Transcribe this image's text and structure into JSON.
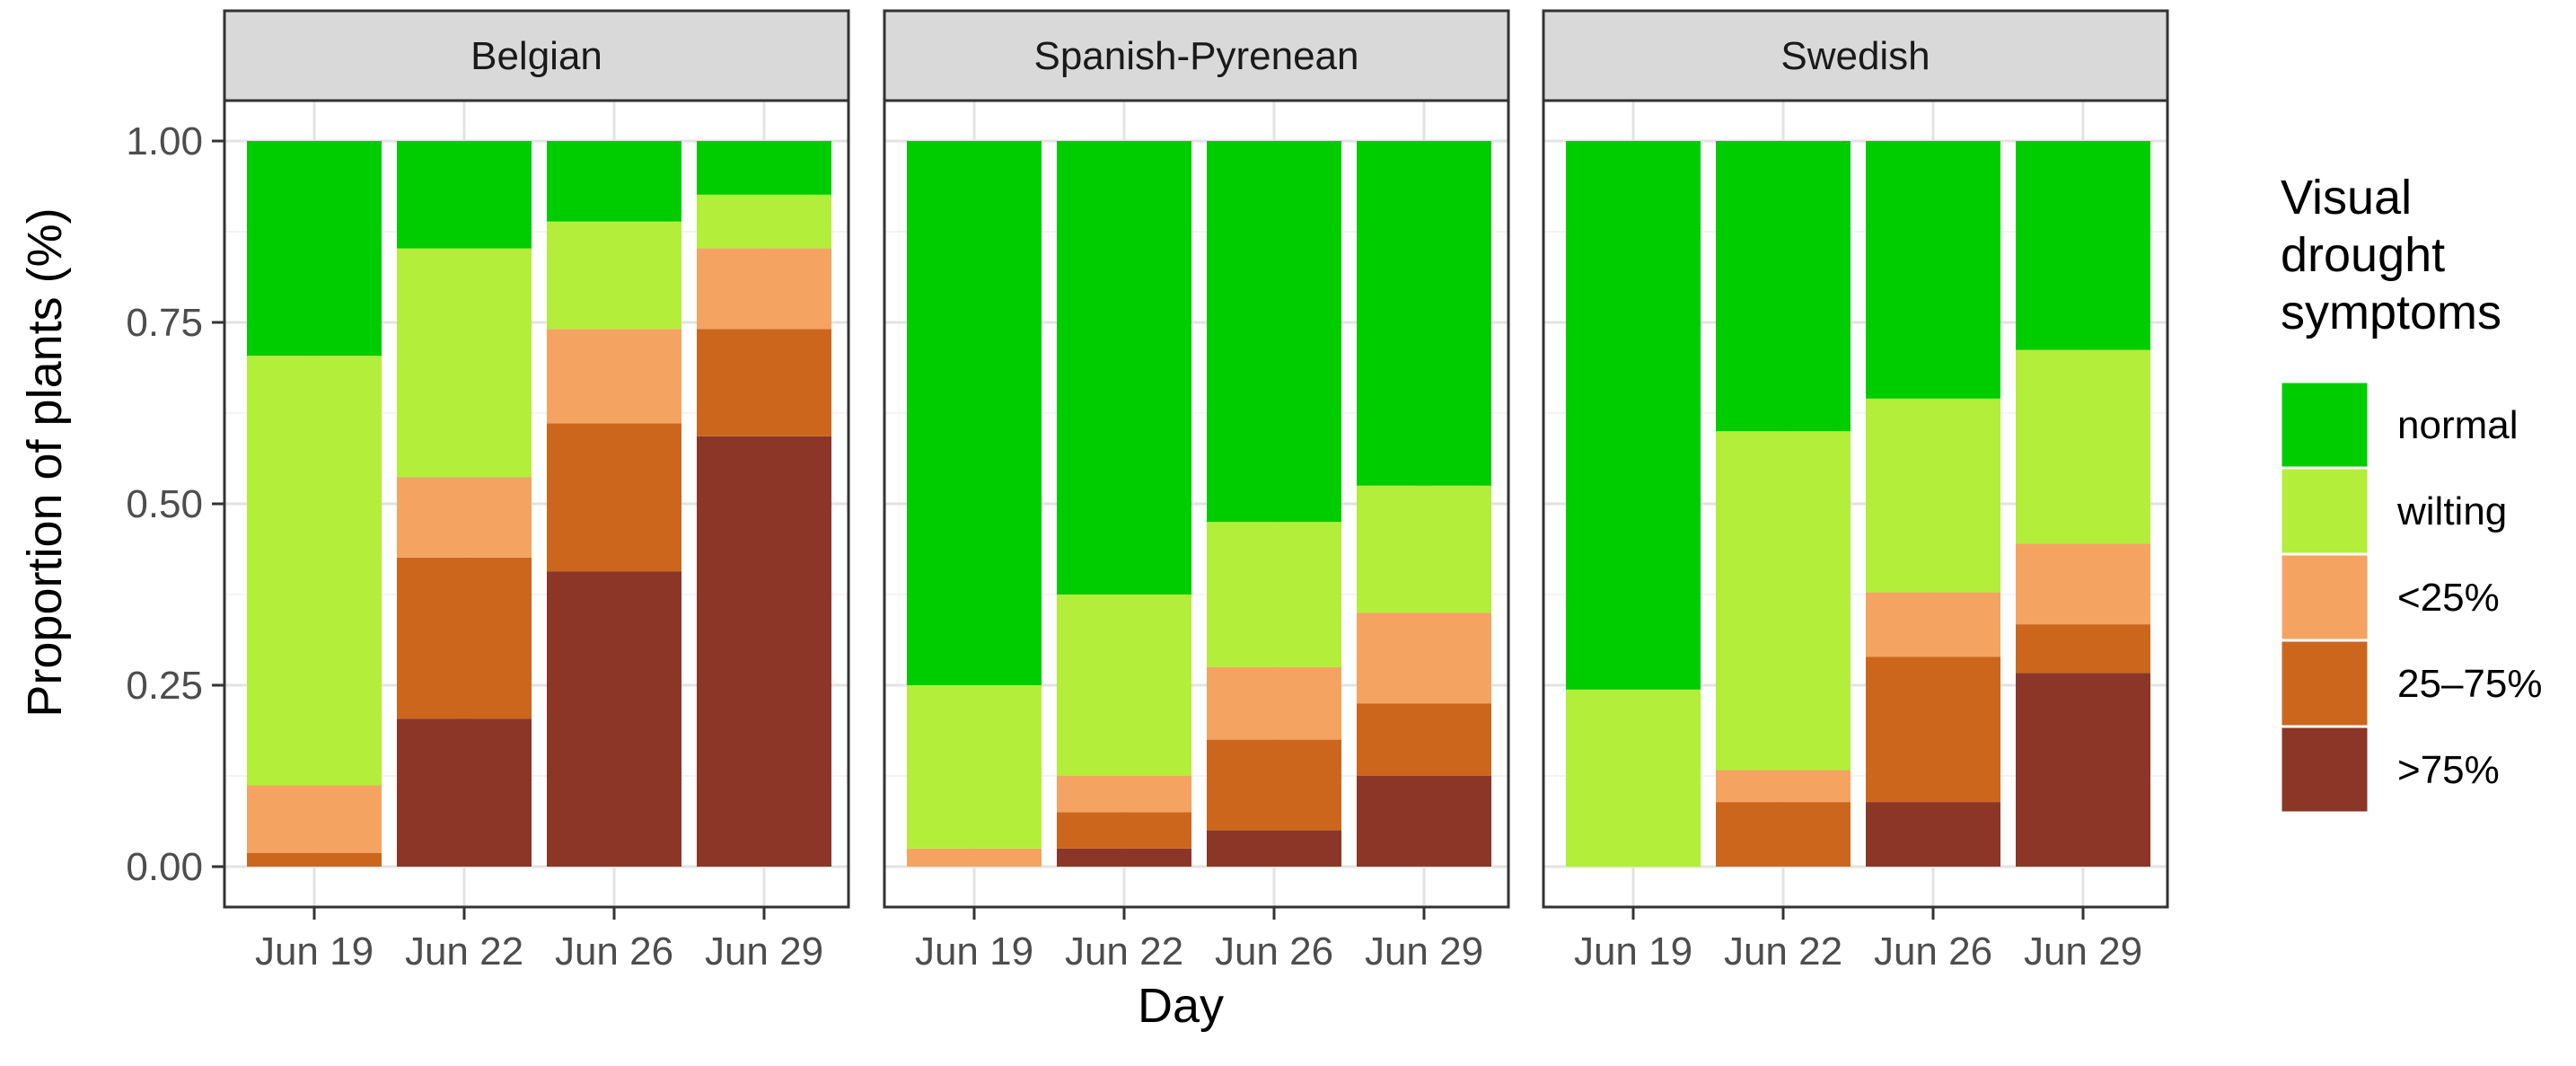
{
  "chart_data": {
    "type": "bar",
    "stacked": true,
    "xlabel": "Day",
    "ylabel": "Proportion of plants (%)",
    "ylim": [
      0,
      1
    ],
    "yticks": [
      "0.00",
      "0.25",
      "0.50",
      "0.75",
      "1.00"
    ],
    "categories": [
      "Jun 19",
      "Jun 22",
      "Jun 26",
      "Jun 29"
    ],
    "grid": true,
    "legend": {
      "title": [
        "Visual",
        "drought",
        "symptoms"
      ],
      "placement": "right",
      "entries": [
        "normal",
        "wilting",
        "<25%",
        "25–75%",
        ">75%"
      ]
    },
    "colors": {
      ">75%": "#8b3626",
      "25–75%": "#cd661d",
      "<25%": "#f4a460",
      "wilting": "#b3ee3a",
      "normal": "#00cd00"
    },
    "stack_order": [
      ">75%",
      "25–75%",
      "<25%",
      "wilting",
      "normal"
    ],
    "facets": [
      {
        "name": "Belgian",
        "series": [
          {
            "name": ">75%",
            "values": [
              0.0,
              0.204,
              0.407,
              0.593
            ]
          },
          {
            "name": "25–75%",
            "values": [
              0.019,
              0.222,
              0.204,
              0.148
            ]
          },
          {
            "name": "<25%",
            "values": [
              0.093,
              0.111,
              0.13,
              0.111
            ]
          },
          {
            "name": "wilting",
            "values": [
              0.592,
              0.315,
              0.148,
              0.074
            ]
          },
          {
            "name": "normal",
            "values": [
              0.296,
              0.148,
              0.111,
              0.074
            ]
          }
        ]
      },
      {
        "name": "Spanish-Pyrenean",
        "series": [
          {
            "name": ">75%",
            "values": [
              0.0,
              0.025,
              0.05,
              0.125
            ]
          },
          {
            "name": "25–75%",
            "values": [
              0.0,
              0.05,
              0.125,
              0.1
            ]
          },
          {
            "name": "<25%",
            "values": [
              0.025,
              0.05,
              0.1,
              0.125
            ]
          },
          {
            "name": "wilting",
            "values": [
              0.225,
              0.25,
              0.2,
              0.175
            ]
          },
          {
            "name": "normal",
            "values": [
              0.75,
              0.625,
              0.525,
              0.475
            ]
          }
        ]
      },
      {
        "name": "Swedish",
        "series": [
          {
            "name": ">75%",
            "values": [
              0.0,
              0.0,
              0.089,
              0.267
            ]
          },
          {
            "name": "25–75%",
            "values": [
              0.0,
              0.089,
              0.2,
              0.067
            ]
          },
          {
            "name": "<25%",
            "values": [
              0.0,
              0.044,
              0.089,
              0.111
            ]
          },
          {
            "name": "wilting",
            "values": [
              0.244,
              0.467,
              0.267,
              0.267
            ]
          },
          {
            "name": "normal",
            "values": [
              0.756,
              0.4,
              0.355,
              0.288
            ]
          }
        ]
      }
    ]
  }
}
